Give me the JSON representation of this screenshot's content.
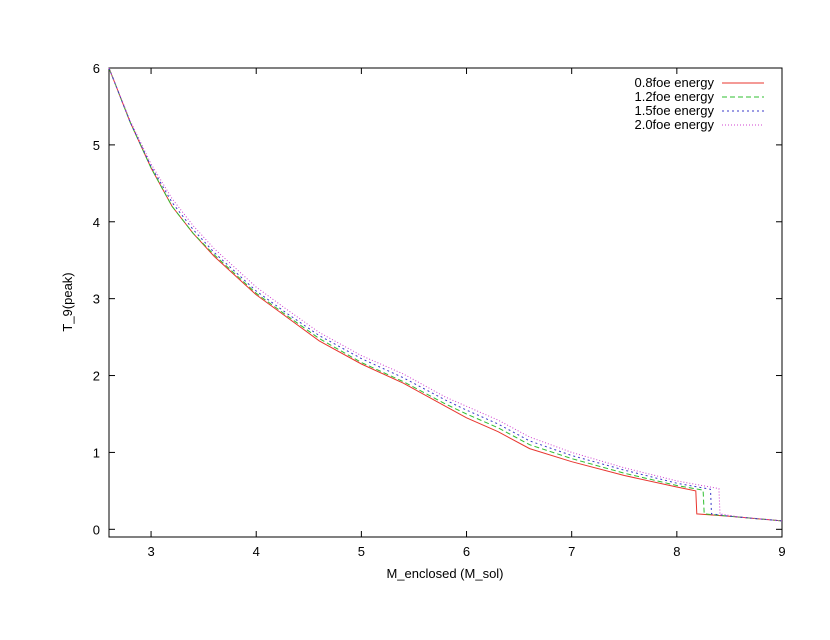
{
  "chart_data": {
    "type": "line",
    "title": "",
    "xlabel": "M_enclosed (M_sol)",
    "ylabel": "T_9(peak)",
    "xlim": [
      2.6,
      9
    ],
    "ylim": [
      -0.1,
      6
    ],
    "xticks": [
      "3",
      "4",
      "5",
      "6",
      "7",
      "8",
      "9"
    ],
    "yticks": [
      "0",
      "1",
      "2",
      "3",
      "4",
      "5",
      "6"
    ],
    "grid": false,
    "legend_position": "top-right",
    "series": [
      {
        "name": "0.8foe energy",
        "color": "#e8352e",
        "dash": "solid",
        "points": [
          [
            2.6,
            6.0
          ],
          [
            2.8,
            5.3
          ],
          [
            3.0,
            4.7
          ],
          [
            3.2,
            4.2
          ],
          [
            3.4,
            3.85
          ],
          [
            3.6,
            3.55
          ],
          [
            3.8,
            3.3
          ],
          [
            4.0,
            3.05
          ],
          [
            4.3,
            2.75
          ],
          [
            4.6,
            2.45
          ],
          [
            5.0,
            2.15
          ],
          [
            5.4,
            1.9
          ],
          [
            5.8,
            1.6
          ],
          [
            6.0,
            1.45
          ],
          [
            6.3,
            1.27
          ],
          [
            6.6,
            1.05
          ],
          [
            7.0,
            0.88
          ],
          [
            7.5,
            0.7
          ],
          [
            8.0,
            0.55
          ],
          [
            8.18,
            0.5
          ],
          [
            8.19,
            0.2
          ],
          [
            8.5,
            0.17
          ],
          [
            9.0,
            0.11
          ]
        ]
      },
      {
        "name": "1.2foe energy",
        "color": "#2fbf2f",
        "dash": "5,3",
        "points": [
          [
            2.6,
            6.0
          ],
          [
            2.8,
            5.3
          ],
          [
            3.0,
            4.7
          ],
          [
            3.2,
            4.2
          ],
          [
            3.4,
            3.85
          ],
          [
            3.6,
            3.57
          ],
          [
            3.8,
            3.32
          ],
          [
            4.0,
            3.07
          ],
          [
            4.3,
            2.77
          ],
          [
            4.6,
            2.48
          ],
          [
            5.0,
            2.17
          ],
          [
            5.4,
            1.92
          ],
          [
            5.8,
            1.63
          ],
          [
            6.0,
            1.5
          ],
          [
            6.3,
            1.32
          ],
          [
            6.6,
            1.1
          ],
          [
            7.0,
            0.92
          ],
          [
            7.5,
            0.73
          ],
          [
            8.0,
            0.57
          ],
          [
            8.25,
            0.51
          ],
          [
            8.26,
            0.2
          ],
          [
            8.5,
            0.17
          ],
          [
            9.0,
            0.11
          ]
        ]
      },
      {
        "name": "1.5foe energy",
        "color": "#3838c8",
        "dash": "2,3",
        "points": [
          [
            2.6,
            6.0
          ],
          [
            2.8,
            5.3
          ],
          [
            3.0,
            4.72
          ],
          [
            3.2,
            4.25
          ],
          [
            3.4,
            3.9
          ],
          [
            3.6,
            3.6
          ],
          [
            3.8,
            3.35
          ],
          [
            4.0,
            3.1
          ],
          [
            4.3,
            2.8
          ],
          [
            4.6,
            2.52
          ],
          [
            5.0,
            2.22
          ],
          [
            5.4,
            1.97
          ],
          [
            5.8,
            1.68
          ],
          [
            6.0,
            1.55
          ],
          [
            6.3,
            1.37
          ],
          [
            6.6,
            1.15
          ],
          [
            7.0,
            0.96
          ],
          [
            7.5,
            0.77
          ],
          [
            8.0,
            0.6
          ],
          [
            8.32,
            0.52
          ],
          [
            8.33,
            0.2
          ],
          [
            8.5,
            0.17
          ],
          [
            9.0,
            0.11
          ]
        ]
      },
      {
        "name": "2.0foe energy",
        "color": "#d040d0",
        "dash": "1,2",
        "points": [
          [
            2.6,
            6.0
          ],
          [
            2.8,
            5.32
          ],
          [
            3.0,
            4.75
          ],
          [
            3.2,
            4.3
          ],
          [
            3.4,
            3.95
          ],
          [
            3.6,
            3.65
          ],
          [
            3.8,
            3.4
          ],
          [
            4.0,
            3.15
          ],
          [
            4.3,
            2.85
          ],
          [
            4.6,
            2.56
          ],
          [
            5.0,
            2.26
          ],
          [
            5.4,
            2.02
          ],
          [
            5.8,
            1.72
          ],
          [
            6.0,
            1.6
          ],
          [
            6.3,
            1.42
          ],
          [
            6.6,
            1.2
          ],
          [
            7.0,
            1.0
          ],
          [
            7.5,
            0.8
          ],
          [
            8.0,
            0.63
          ],
          [
            8.4,
            0.53
          ],
          [
            8.41,
            0.2
          ],
          [
            8.6,
            0.16
          ],
          [
            9.0,
            0.11
          ]
        ]
      }
    ]
  }
}
